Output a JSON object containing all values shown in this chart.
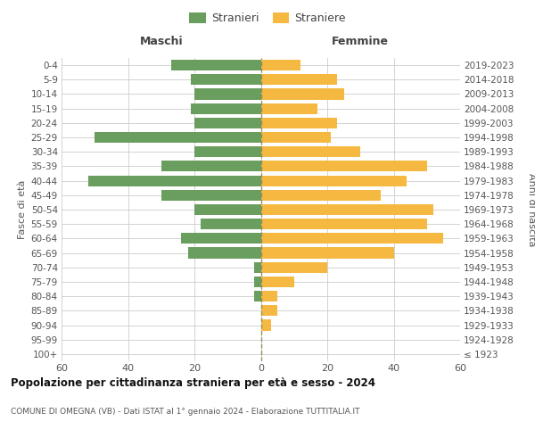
{
  "age_groups": [
    "100+",
    "95-99",
    "90-94",
    "85-89",
    "80-84",
    "75-79",
    "70-74",
    "65-69",
    "60-64",
    "55-59",
    "50-54",
    "45-49",
    "40-44",
    "35-39",
    "30-34",
    "25-29",
    "20-24",
    "15-19",
    "10-14",
    "5-9",
    "0-4"
  ],
  "birth_years": [
    "≤ 1923",
    "1924-1928",
    "1929-1933",
    "1934-1938",
    "1939-1943",
    "1944-1948",
    "1949-1953",
    "1954-1958",
    "1959-1963",
    "1964-1968",
    "1969-1973",
    "1974-1978",
    "1979-1983",
    "1984-1988",
    "1989-1993",
    "1994-1998",
    "1999-2003",
    "2004-2008",
    "2009-2013",
    "2014-2018",
    "2019-2023"
  ],
  "males": [
    0,
    0,
    0,
    0,
    2,
    2,
    2,
    22,
    24,
    18,
    20,
    30,
    52,
    30,
    20,
    50,
    20,
    21,
    20,
    21,
    27
  ],
  "females": [
    0,
    0,
    3,
    5,
    5,
    10,
    20,
    40,
    55,
    50,
    52,
    36,
    44,
    50,
    30,
    21,
    23,
    17,
    25,
    23,
    12
  ],
  "male_color": "#6a9e5f",
  "female_color": "#f5b942",
  "background_color": "#ffffff",
  "grid_color": "#cccccc",
  "title": "Popolazione per cittadinanza straniera per età e sesso - 2024",
  "subtitle": "COMUNE DI OMEGNA (VB) - Dati ISTAT al 1° gennaio 2024 - Elaborazione TUTTITALIA.IT",
  "label_maschi": "Maschi",
  "label_femmine": "Femmine",
  "ylabel_left": "Fasce di età",
  "ylabel_right": "Anni di nascita",
  "legend_stranieri": "Stranieri",
  "legend_straniere": "Straniere",
  "xlim": 60,
  "bar_height": 0.75,
  "xticks": [
    -60,
    -40,
    -20,
    0,
    20,
    40,
    60
  ],
  "xticklabels": [
    "60",
    "40",
    "20",
    "0",
    "20",
    "40",
    "60"
  ]
}
